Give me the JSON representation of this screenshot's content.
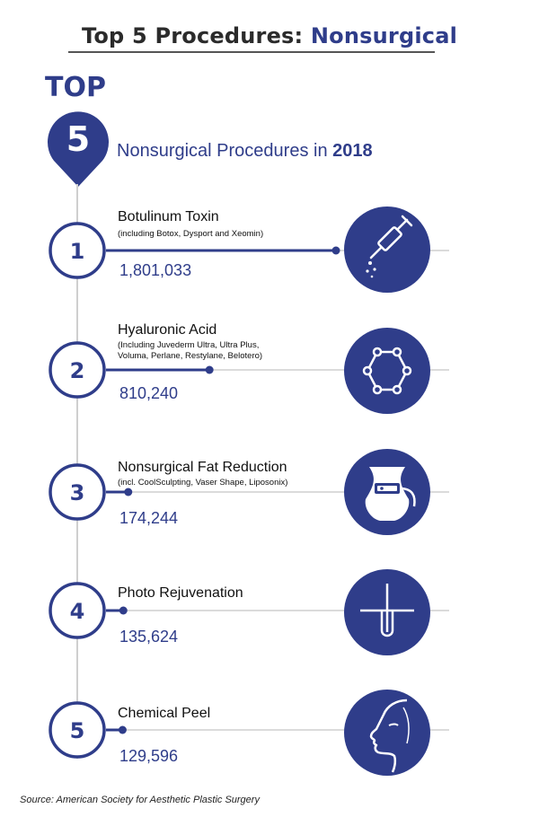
{
  "title": {
    "main": "Top 5 Procedures:",
    "accent": "Nonsurgical"
  },
  "header": {
    "top_label": "TOP",
    "top_number": "5",
    "subtitle_text": "Nonsurgical Procedures in",
    "subtitle_year": "2018"
  },
  "colors": {
    "accent": "#2f3d8a",
    "line": "#cfcfcf",
    "text": "#2b2b2b"
  },
  "chart_data": {
    "type": "bar",
    "categories": [
      "Botulinum Toxin",
      "Hyaluronic Acid",
      "Nonsurgical Fat Reduction",
      "Photo Rejuvenation",
      "Chemical Peel"
    ],
    "values": [
      1801033,
      810240,
      174244,
      135624,
      129596
    ],
    "value_labels": [
      "1,801,033",
      "810,240",
      "174,244",
      "135,624",
      "129,596"
    ],
    "ranks": [
      "1",
      "2",
      "3",
      "4",
      "5"
    ],
    "notes": [
      [
        "(including Botox, Dysport and Xeomin)"
      ],
      [
        "(Including Juvederm Ultra, Ultra Plus,",
        "Voluma, Perlane, Restylane, Belotero)"
      ],
      [
        "(incl. CoolSculpting, Vaser Shape, Liposonix)"
      ],
      [],
      []
    ],
    "icons": [
      "syringe-icon",
      "hexagon-molecule-icon",
      "waist-belt-icon",
      "hair-follicle-icon",
      "face-profile-icon"
    ],
    "xlim": [
      0,
      1801033
    ]
  },
  "source": "Source: American Society for Aesthetic Plastic Surgery"
}
